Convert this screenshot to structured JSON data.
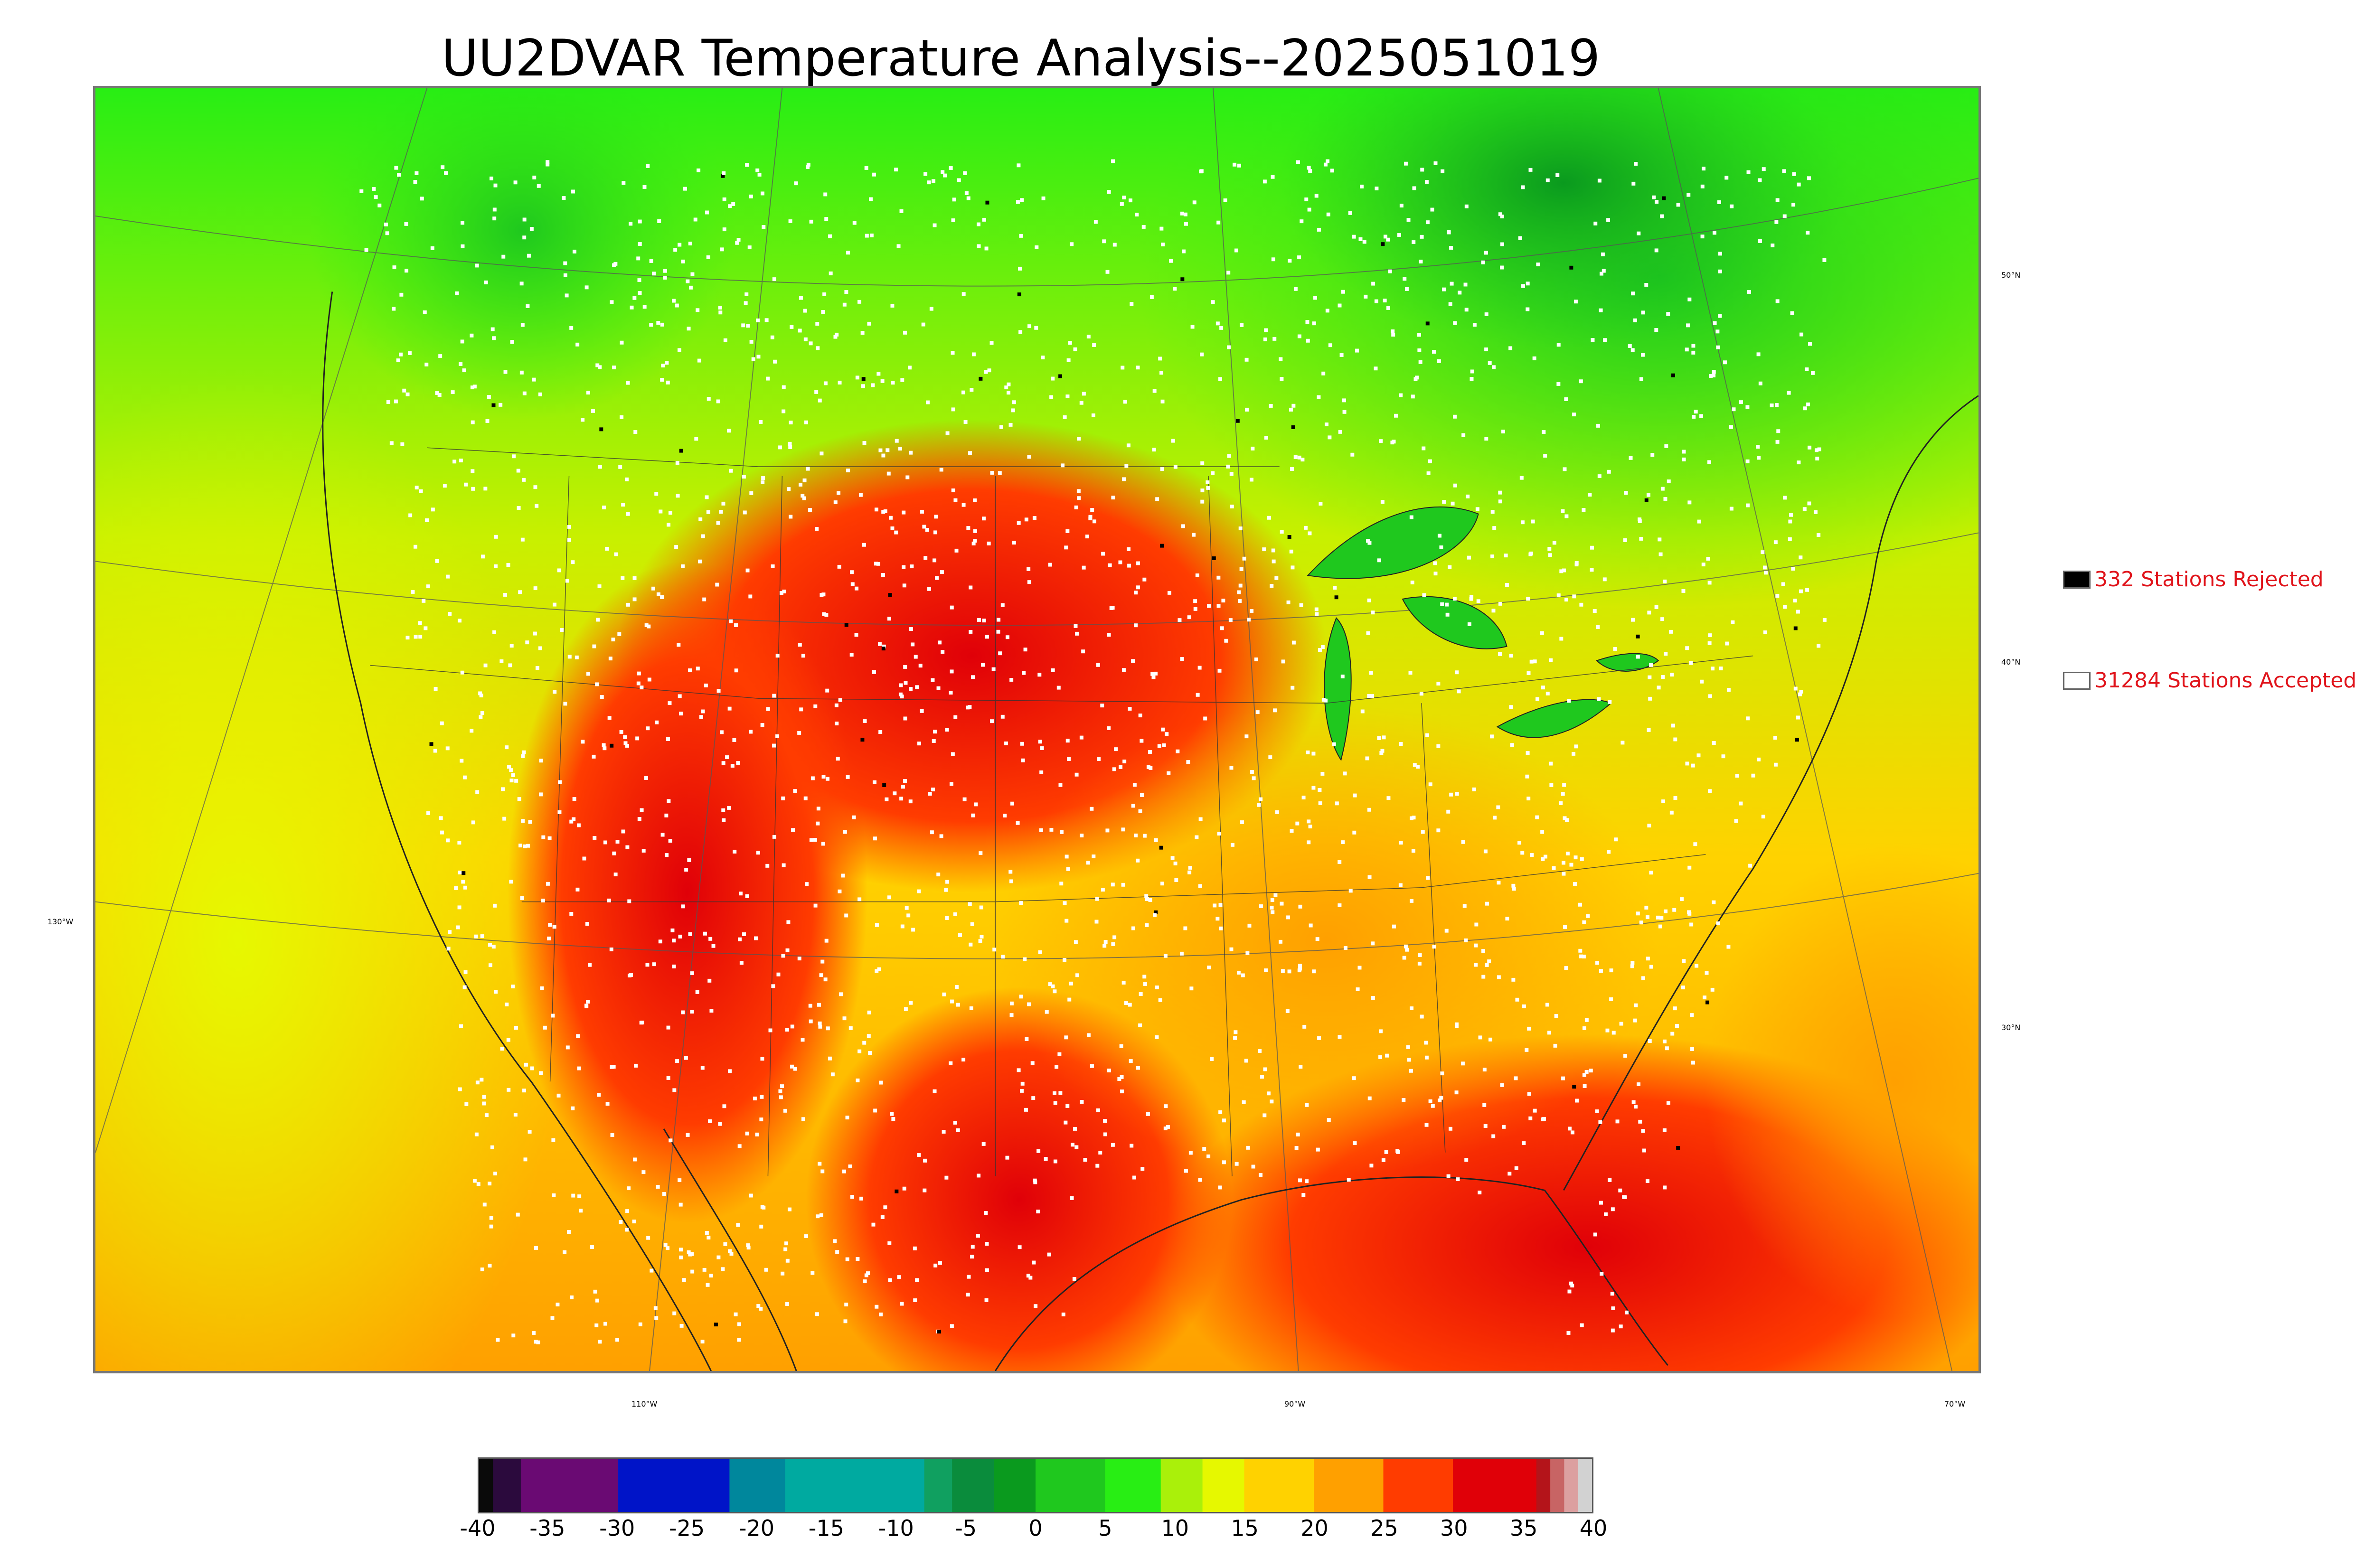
{
  "title": "UU2DVAR Temperature Analysis--2025051019",
  "graticule": {
    "lon_labels": [
      "130°W",
      "110°W",
      "90°W",
      "70°W"
    ],
    "lat_labels": [
      "50°N",
      "40°N",
      "30°N"
    ]
  },
  "legend": {
    "rejected": {
      "label": "332 Stations Rejected",
      "color": "#000000"
    },
    "accepted": {
      "label": "31284 Stations Accepted",
      "color": "#ffffff"
    }
  },
  "colorbar": {
    "min": -40,
    "max": 40,
    "ticks": [
      "-40",
      "-35",
      "-30",
      "-25",
      "-20",
      "-15",
      "-10",
      "-5",
      "0",
      "5",
      "10",
      "15",
      "20",
      "25",
      "30",
      "35",
      "40"
    ],
    "bands": [
      {
        "from": -40,
        "to": -39,
        "color": "#0a0a0a"
      },
      {
        "from": -39,
        "to": -37,
        "color": "#2b0a3d"
      },
      {
        "from": -37,
        "to": -30,
        "color": "#6a0a73"
      },
      {
        "from": -30,
        "to": -22,
        "color": "#0014c8"
      },
      {
        "from": -22,
        "to": -18,
        "color": "#00879c"
      },
      {
        "from": -18,
        "to": -8,
        "color": "#00aaa0"
      },
      {
        "from": -8,
        "to": -6,
        "color": "#10a060"
      },
      {
        "from": -6,
        "to": -3,
        "color": "#0a8c3c"
      },
      {
        "from": -3,
        "to": 0,
        "color": "#0a9a1e"
      },
      {
        "from": 0,
        "to": 5,
        "color": "#1fc81e"
      },
      {
        "from": 5,
        "to": 9,
        "color": "#28ee14"
      },
      {
        "from": 9,
        "to": 12,
        "color": "#aaf00a"
      },
      {
        "from": 12,
        "to": 15,
        "color": "#e6f800"
      },
      {
        "from": 15,
        "to": 20,
        "color": "#ffd200"
      },
      {
        "from": 20,
        "to": 25,
        "color": "#ffa000"
      },
      {
        "from": 25,
        "to": 30,
        "color": "#ff3c00"
      },
      {
        "from": 30,
        "to": 36,
        "color": "#e00008"
      },
      {
        "from": 36,
        "to": 37,
        "color": "#b4141a"
      },
      {
        "from": 37,
        "to": 38,
        "color": "#c86464"
      },
      {
        "from": 38,
        "to": 39,
        "color": "#dca0a0"
      },
      {
        "from": 39,
        "to": 40,
        "color": "#d2d2d2"
      }
    ]
  }
}
